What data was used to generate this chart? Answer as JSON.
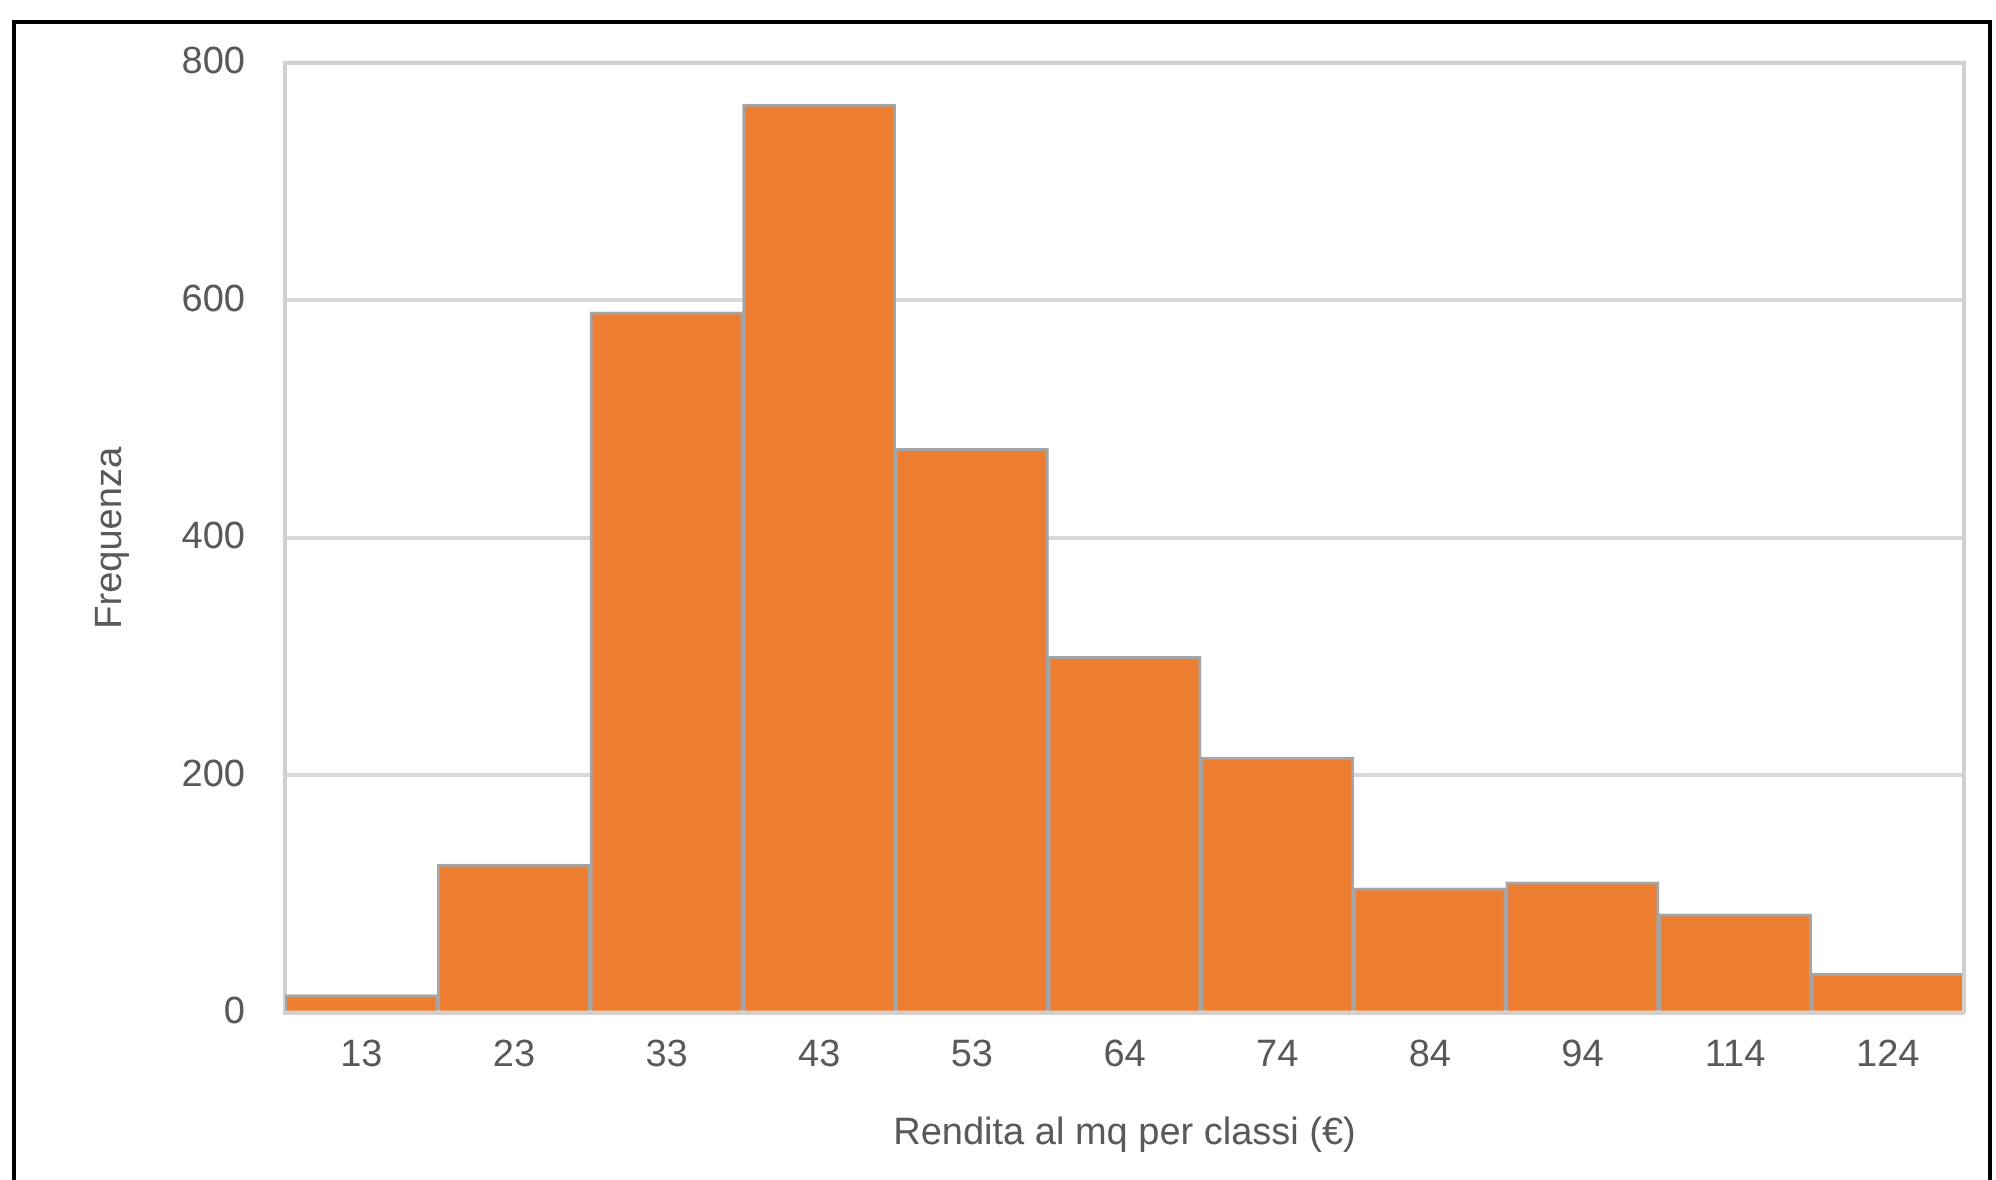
{
  "chart_data": {
    "type": "bar",
    "xlabel": "Rendita al mq per classi (€)",
    "ylabel": "Frequenza",
    "categories": [
      "13",
      "23",
      "33",
      "43",
      "53",
      "64",
      "74",
      "84",
      "94",
      "114",
      "124"
    ],
    "values": [
      15,
      125,
      590,
      765,
      475,
      300,
      215,
      105,
      110,
      83,
      33
    ],
    "color": "#ed7d31",
    "ylim": [
      0,
      800
    ],
    "yticks": [
      0,
      200,
      400,
      600,
      800
    ],
    "grid": "y",
    "legend": false
  }
}
